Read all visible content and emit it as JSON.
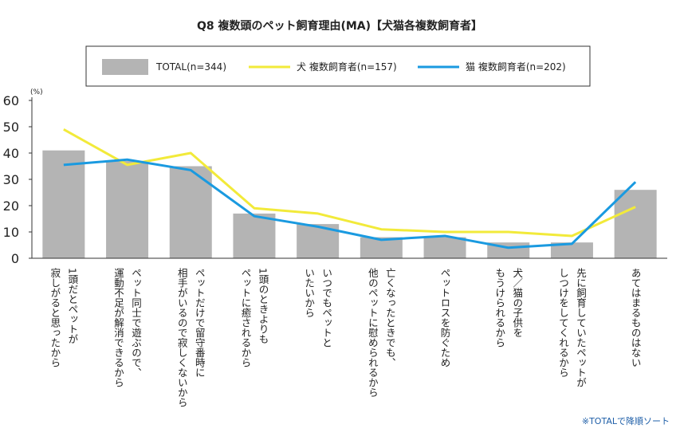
{
  "chart_data": {
    "type": "bar",
    "title": "Q8 複数頭のペット飼育理由(MA)【犬猫各複数飼育者】",
    "y_unit": "(%)",
    "note": "※TOTALで降順ソート",
    "categories": [
      [
        "1頭だとペットが",
        "寂しがると思ったから"
      ],
      [
        "ペット同士で遊ぶので、",
        "運動不足が解消できるから"
      ],
      [
        "ペットだけで留守番時に",
        "相手がいるので寂しくないから"
      ],
      [
        "1頭のときよりも",
        "ペットに癒されるから"
      ],
      [
        "いつでもペットと",
        "いたいから"
      ],
      [
        "亡くなったときでも、",
        "他のペットに慰められるから"
      ],
      [
        "ペットロスを防ぐため"
      ],
      [
        "犬／猫の子供を",
        "もうけられるから"
      ],
      [
        "先に飼育していたペットが",
        "しつけをしてくれるから"
      ],
      [
        "あてはまるものはない"
      ]
    ],
    "series": [
      {
        "name": "TOTAL(n=344)",
        "type": "bar",
        "color": "#b4b4b4",
        "values": [
          41,
          37,
          35,
          17,
          13,
          8,
          8,
          6,
          6,
          26
        ]
      },
      {
        "name": "犬 複数飼育者(n=157)",
        "type": "line",
        "color": "#f2ea3a",
        "values": [
          49,
          35.5,
          40,
          19,
          17,
          11,
          10,
          10,
          8.5,
          19.5
        ]
      },
      {
        "name": "猫 複数飼育者(n=202)",
        "type": "line",
        "color": "#1a9ae0",
        "values": [
          35.5,
          37.5,
          33.5,
          16,
          12,
          7,
          8.5,
          4,
          5.5,
          29
        ]
      }
    ],
    "ylim": [
      0,
      60
    ],
    "yticks": [
      0,
      10,
      20,
      30,
      40,
      50,
      60
    ],
    "grid": false
  }
}
